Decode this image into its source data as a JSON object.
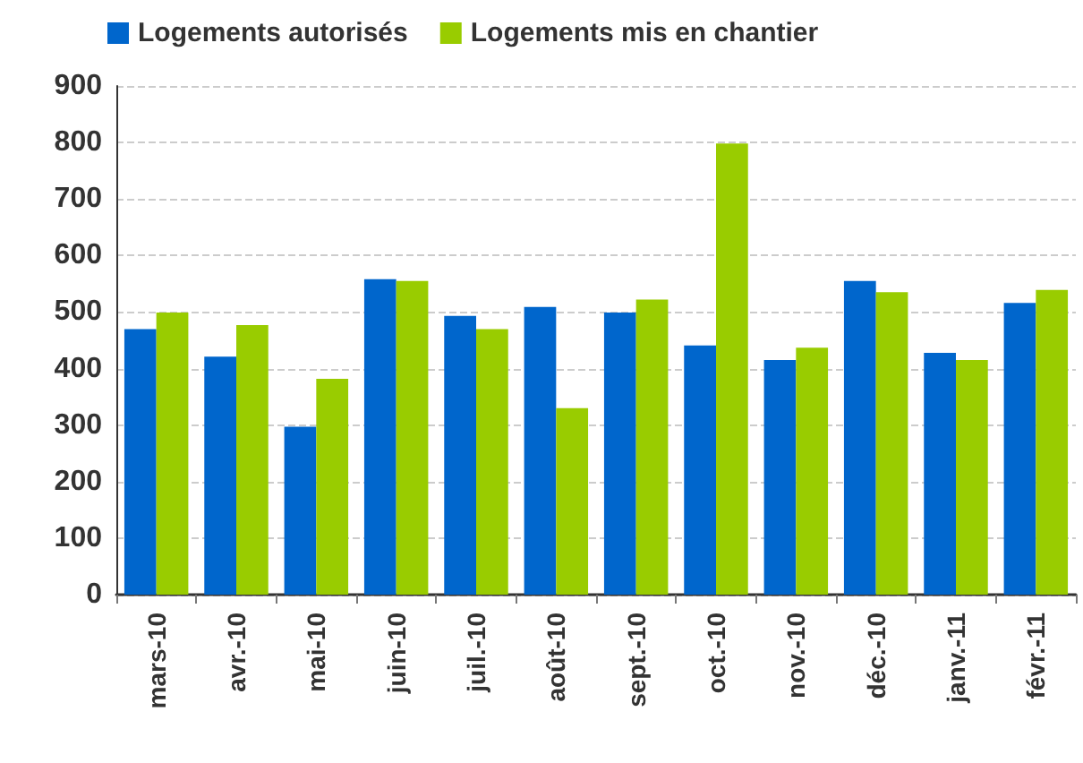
{
  "chart_data": {
    "type": "bar",
    "categories": [
      "mars-10",
      "avr.-10",
      "mai-10",
      "juin-10",
      "juil.-10",
      "août-10",
      "sept.-10",
      "oct.-10",
      "nov.-10",
      "déc.-10",
      "janv.-11",
      "févr.-11"
    ],
    "series": [
      {
        "name": "Logements autorisés",
        "color": "#0066cc",
        "values": [
          470,
          421,
          297,
          558,
          493,
          509,
          499,
          441,
          415,
          555,
          428,
          516
        ]
      },
      {
        "name": "Logements mis en chantier",
        "color": "#99cc00",
        "values": [
          499,
          477,
          382,
          555,
          470,
          330,
          522,
          798,
          437,
          535,
          415,
          539
        ]
      }
    ],
    "ylim": [
      0,
      900
    ],
    "yticks": [
      0,
      100,
      200,
      300,
      400,
      500,
      600,
      700,
      800,
      900
    ],
    "grid": "y",
    "legend": "top"
  }
}
